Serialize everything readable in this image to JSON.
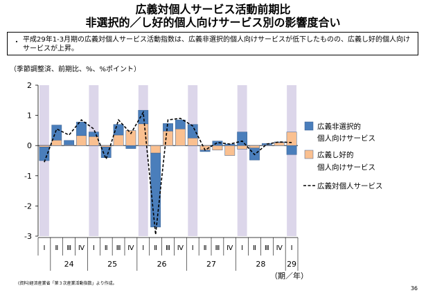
{
  "header": {
    "title_line1": "広義対個人サービス活動前期比",
    "title_line2": "非選択的／し好的個人向けサービス別の影響度合い"
  },
  "note": {
    "bullet": "・",
    "text": "平成29年1-3月期の広義対個人サービス活動指数は、広義非選択的個人向けサービスが低下したものの、広義し好的個人向けサービスが上昇。"
  },
  "unit_label": "（季節調整済、前期比、%、%ポイント）",
  "source": "(資料)経済産業省「第３次産業活動指数」より作成。",
  "page_number": "36",
  "colors": {
    "non_selective": "#4a7ebb",
    "preference": "#fac090",
    "shade": "#dcd6ea",
    "line": "#000000"
  },
  "chart_data": {
    "type": "bar",
    "stacked": true,
    "ylim": [
      -3,
      2
    ],
    "yticks": [
      "2",
      "1",
      "0",
      "-1",
      "-2",
      "-3"
    ],
    "quarter_labels": [
      "Ⅰ",
      "Ⅱ",
      "Ⅲ",
      "Ⅳ",
      "Ⅰ",
      "Ⅱ",
      "Ⅲ",
      "Ⅳ",
      "Ⅰ",
      "Ⅱ",
      "Ⅲ",
      "Ⅳ",
      "Ⅰ",
      "Ⅱ",
      "Ⅲ",
      "Ⅳ",
      "Ⅰ",
      "Ⅱ",
      "Ⅲ",
      "Ⅳ",
      "Ⅰ"
    ],
    "year_labels": [
      "24",
      "25",
      "26",
      "27",
      "28",
      "29"
    ],
    "year_spans": [
      [
        1,
        3
      ],
      [
        4,
        7
      ],
      [
        8,
        11
      ],
      [
        12,
        15
      ],
      [
        16,
        19
      ],
      [
        20,
        20
      ]
    ],
    "period_label": "（期／年）",
    "shaded_quarters": [
      0,
      4,
      8,
      12,
      16,
      20
    ],
    "legend_position": "right",
    "series": [
      {
        "name_line1": "広義非選択的",
        "name_line2": "個人向けサービス",
        "values": [
          -0.45,
          0.5,
          0.15,
          0.45,
          0.15,
          -0.35,
          0.35,
          -0.1,
          0.45,
          -2.45,
          0.25,
          0.3,
          0.45,
          -0.05,
          0.15,
          0.05,
          0.45,
          -0.4,
          0.05,
          0.02,
          -0.3
        ]
      },
      {
        "name_line1": "広義し好的",
        "name_line2": "個人向けサービス",
        "values": [
          -0.05,
          0.18,
          0.02,
          0.33,
          0.3,
          -0.05,
          0.35,
          0.5,
          0.72,
          -0.25,
          0.48,
          0.55,
          0.25,
          -0.15,
          -0.15,
          -0.33,
          -0.12,
          -0.08,
          0.02,
          0.1,
          0.45
        ]
      },
      {
        "name": "広義対個人サービス",
        "type": "line",
        "values": [
          -0.55,
          0.55,
          0.35,
          0.85,
          0.55,
          -0.45,
          0.85,
          0.4,
          1.1,
          -2.95,
          0.85,
          0.9,
          0.65,
          -0.15,
          0.1,
          0.05,
          0.15,
          -0.3,
          0.05,
          0.12,
          0.1
        ]
      }
    ]
  }
}
